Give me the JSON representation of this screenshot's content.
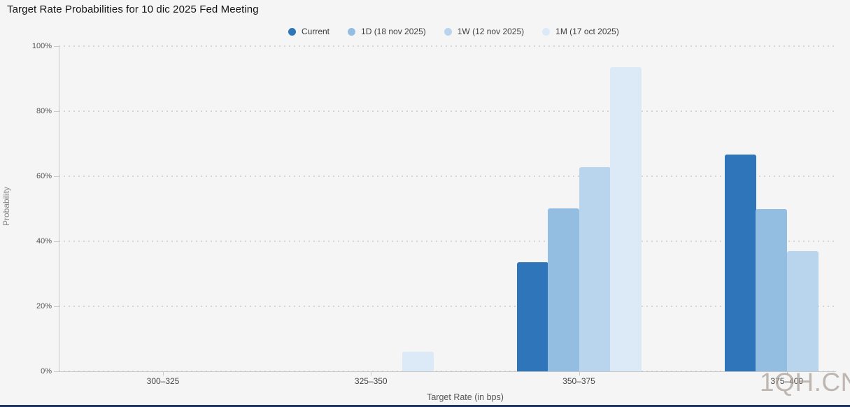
{
  "title": "Target Rate Probabilities for 10 dic 2025 Fed Meeting",
  "watermark": "1QH.CN",
  "colors": {
    "background": "#f5f5f6",
    "gridline": "#d5d5d5",
    "axis_line": "#c6c6c6",
    "current": "#2e76b9",
    "one_day": "#94bde2",
    "one_week": "#b9d4ed",
    "one_month": "#dce9f6",
    "bottom_strip": "#1c3766",
    "watermark_gray": "#aca29a"
  },
  "chart_data": {
    "type": "bar",
    "title": "Target Rate Probabilities for 10 dic 2025 Fed Meeting",
    "xlabel": "Target Rate (in bps)",
    "ylabel": "Probability",
    "ylim": [
      0,
      100
    ],
    "ytick_labels": [
      "0%",
      "20%",
      "40%",
      "60%",
      "80%",
      "100%"
    ],
    "grid": "horizontal dotted lines at every 20%",
    "legend_position": "top-center",
    "categories": [
      "300–325",
      "325–350",
      "350–375",
      "375–400"
    ],
    "series": [
      {
        "name": "Current",
        "color": "#2e76b9",
        "values": [
          0,
          0,
          33.5,
          66.7
        ]
      },
      {
        "name": "1D (18 nov 2025)",
        "color": "#94bde2",
        "values": [
          0,
          0,
          50.1,
          49.9
        ]
      },
      {
        "name": "1W (12 nov 2025)",
        "color": "#b9d4ed",
        "values": [
          0,
          0,
          62.8,
          37.0
        ]
      },
      {
        "name": "1M (17 oct 2025)",
        "color": "#dce9f6",
        "values": [
          0,
          6.1,
          93.5,
          0
        ]
      }
    ]
  }
}
